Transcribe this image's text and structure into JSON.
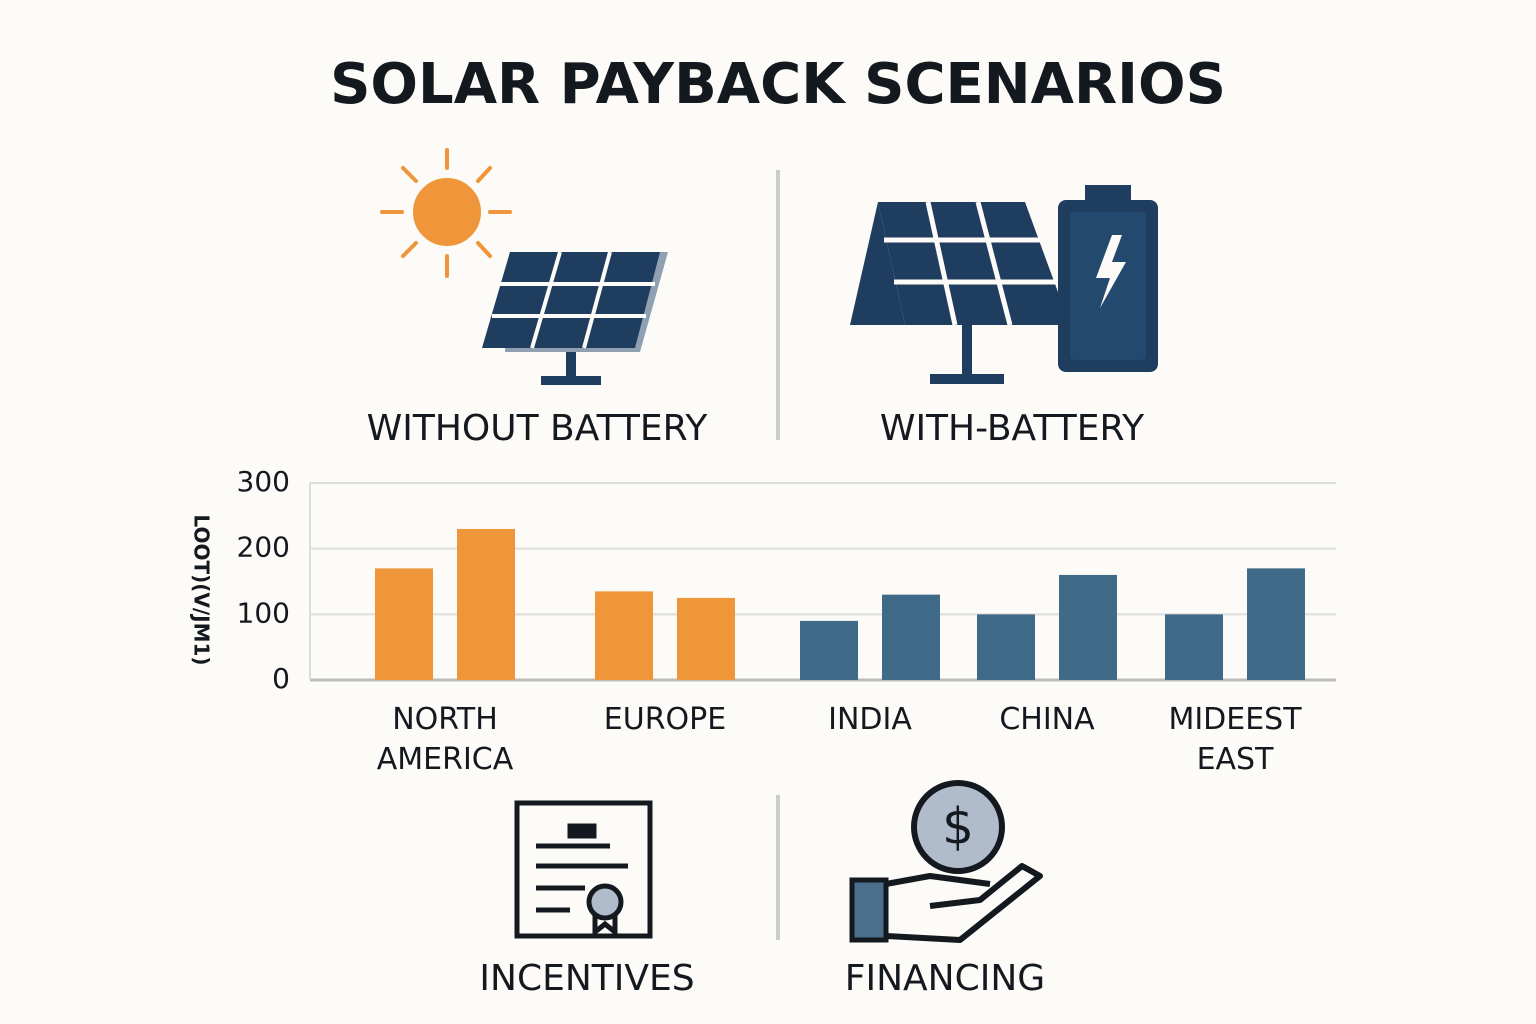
{
  "title": "SOLAR PAYBACK SCENARIOS",
  "panels": {
    "left": "WITHOUT BATTERY",
    "right": "WITH-BATTERY"
  },
  "footer": {
    "left": "INCENTIVES",
    "right": "FINANCING",
    "coin_symbol": "$"
  },
  "chart_data": {
    "type": "bar",
    "y_label": "LOOT)(V/JM1)",
    "categories": [
      "NORTH AMERICA",
      "EUROPE",
      "INDIA",
      "CHINA",
      "MIDEEST EAST"
    ],
    "category_colors": [
      "#f0963a",
      "#f0963a",
      "#3f6b88",
      "#3f6b88",
      "#3f6b88"
    ],
    "series": [
      {
        "values": [
          170,
          135,
          90,
          100,
          100
        ]
      },
      {
        "values": [
          230,
          125,
          130,
          160,
          170
        ]
      }
    ],
    "ylim": [
      0,
      300
    ],
    "yticks": [
      0,
      100,
      200,
      300
    ],
    "grid": true
  }
}
